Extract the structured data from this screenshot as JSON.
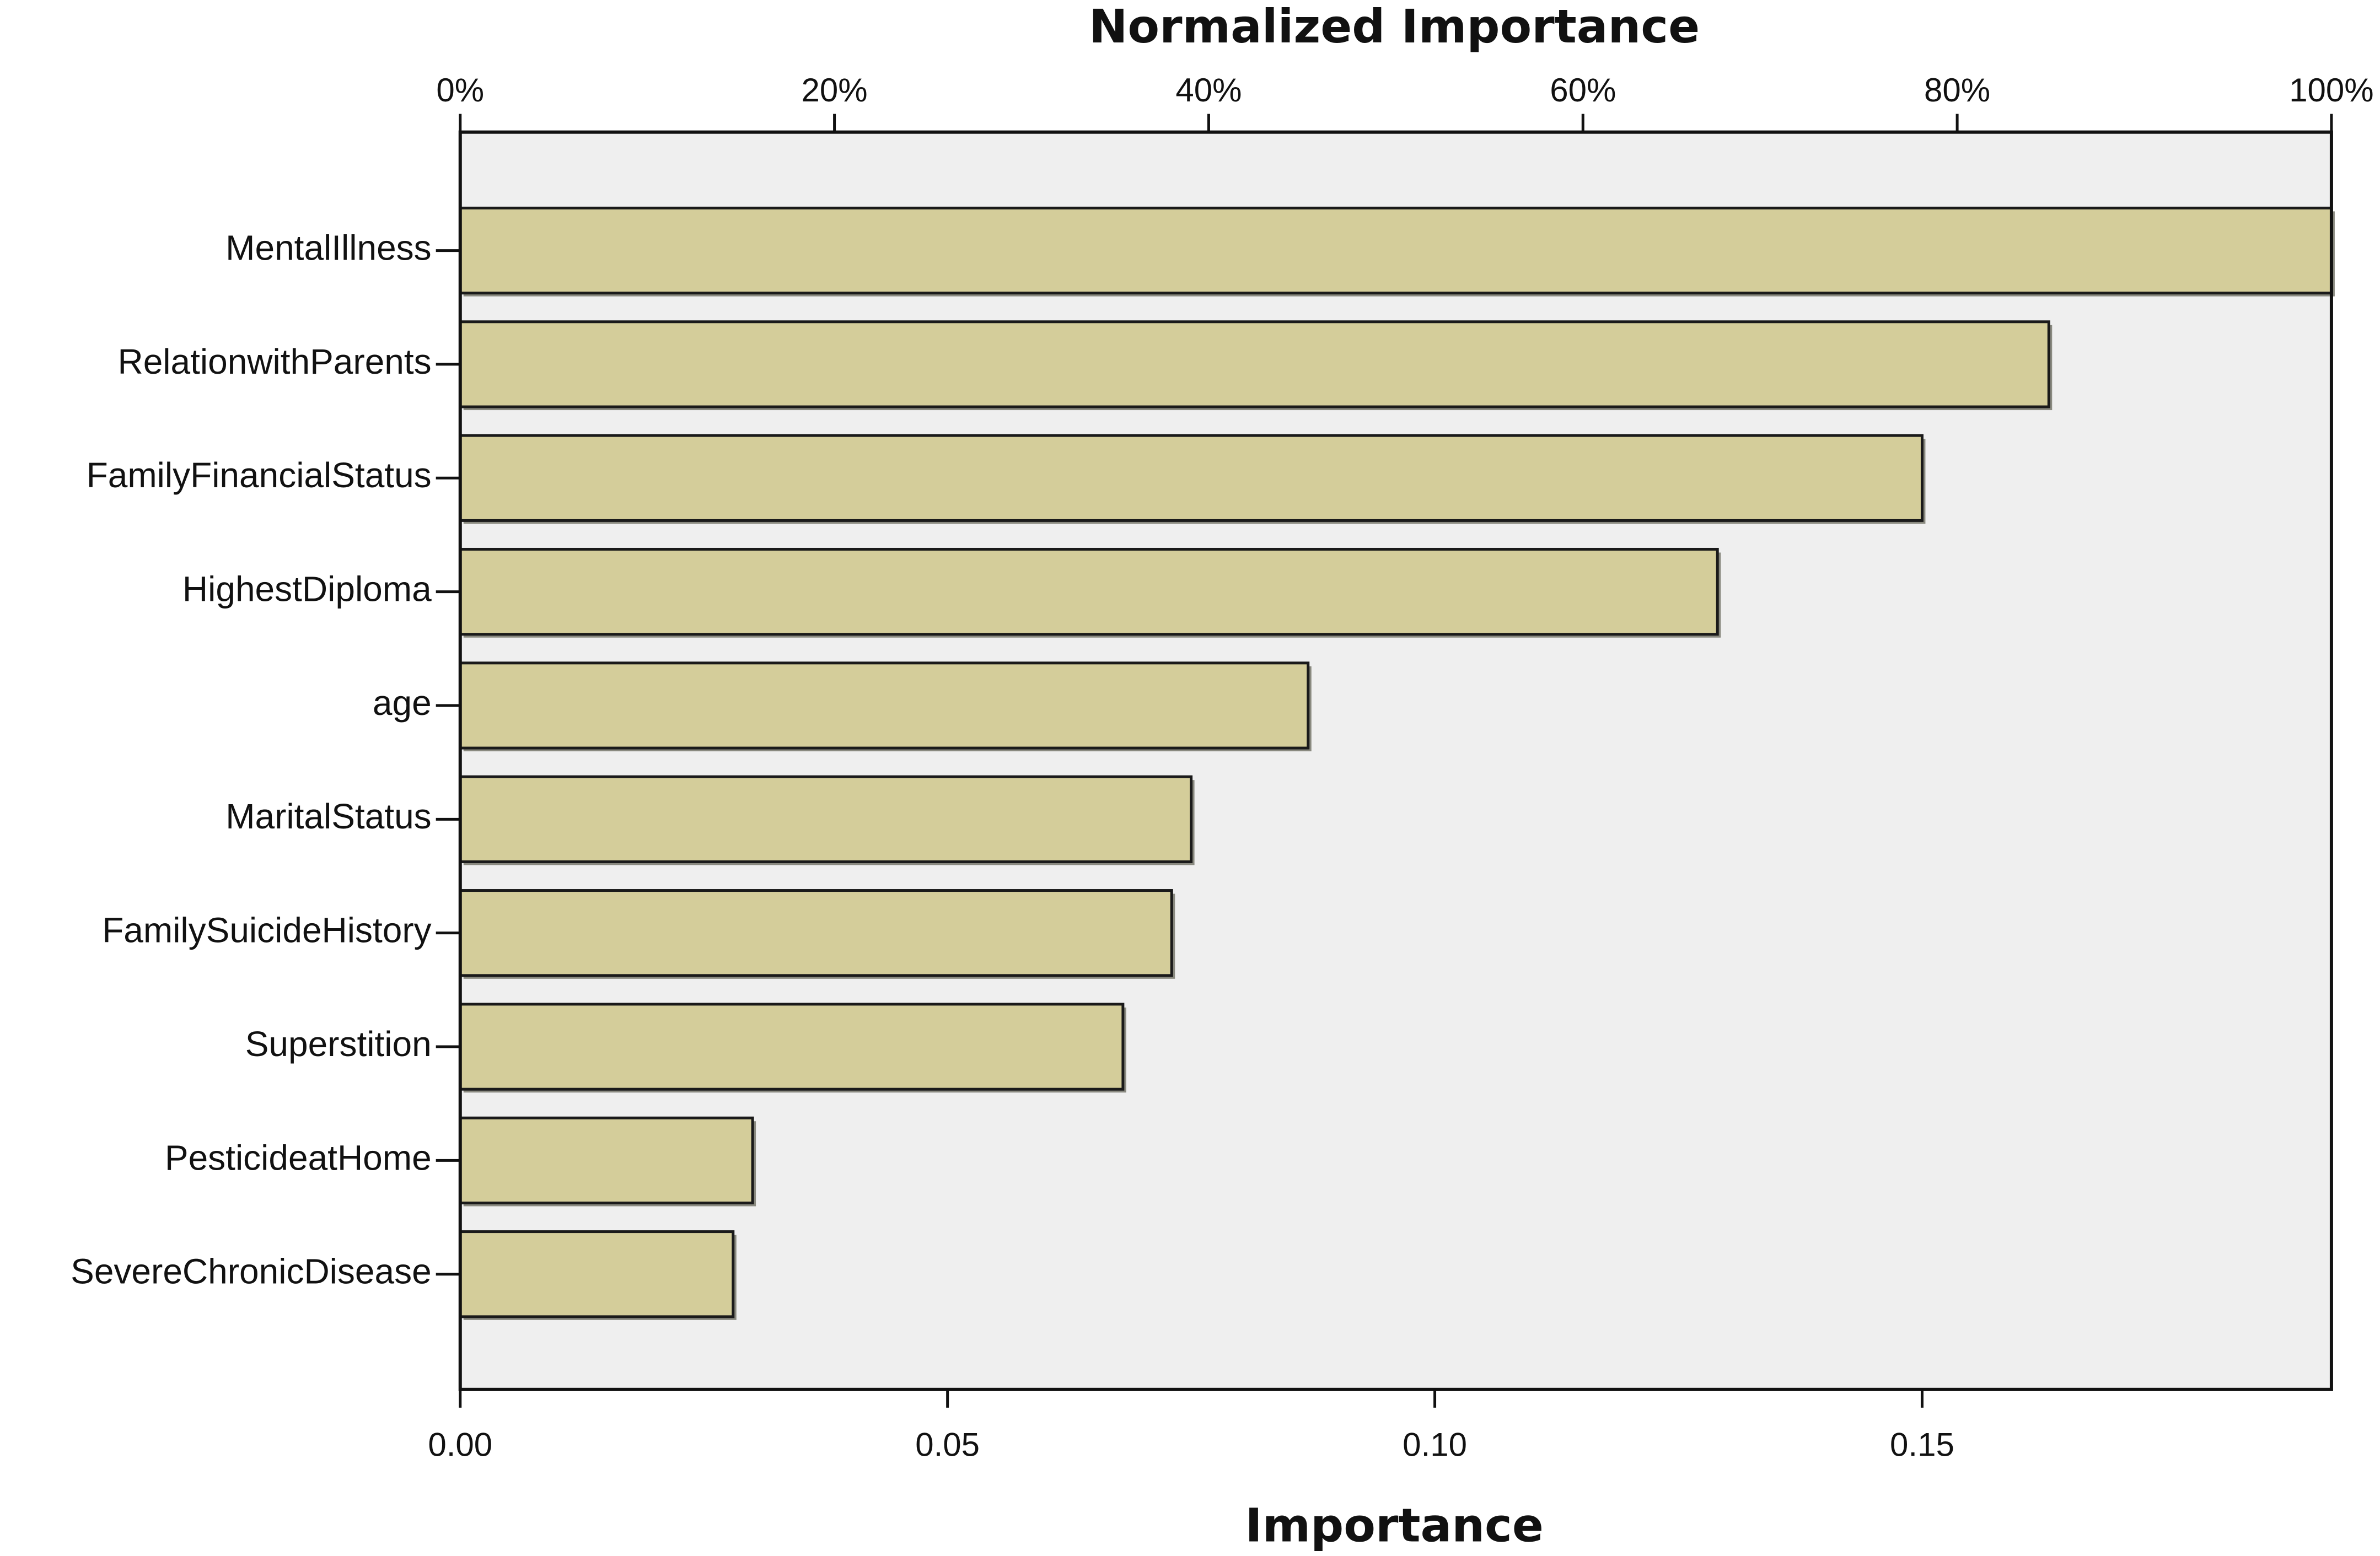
{
  "chart_data": {
    "type": "bar",
    "orientation": "horizontal",
    "title": "Normalized Importance",
    "xlabel": "Importance",
    "categories": [
      "MentalIllness",
      "RelationwithParents",
      "FamilyFinancialStatus",
      "HighestDiploma",
      "age",
      "MaritalStatus",
      "FamilySuicideHistory",
      "Superstition",
      "PesticideatHome",
      "SevereChronicDisease"
    ],
    "values": [
      0.192,
      0.163,
      0.15,
      0.129,
      0.087,
      0.075,
      0.073,
      0.068,
      0.03,
      0.028
    ],
    "xlim": [
      0,
      0.192
    ],
    "bottom_axis": {
      "ticks": [
        0,
        0.05,
        0.1,
        0.15
      ],
      "tick_labels": [
        "0.00",
        "0.05",
        "0.10",
        "0.15"
      ]
    },
    "top_axis": {
      "ticks": [
        0,
        20,
        40,
        60,
        80,
        100
      ],
      "tick_labels": [
        "0%",
        "20%",
        "40%",
        "60%",
        "80%",
        "100%"
      ]
    },
    "grid": false,
    "legend": "none",
    "colors": {
      "bar_fill": "#d4cd9a",
      "bar_stroke": "#1a1a1a",
      "bar_shadow": "#8a8a80",
      "plot_background": "#efefef",
      "axis": "#111111"
    }
  }
}
